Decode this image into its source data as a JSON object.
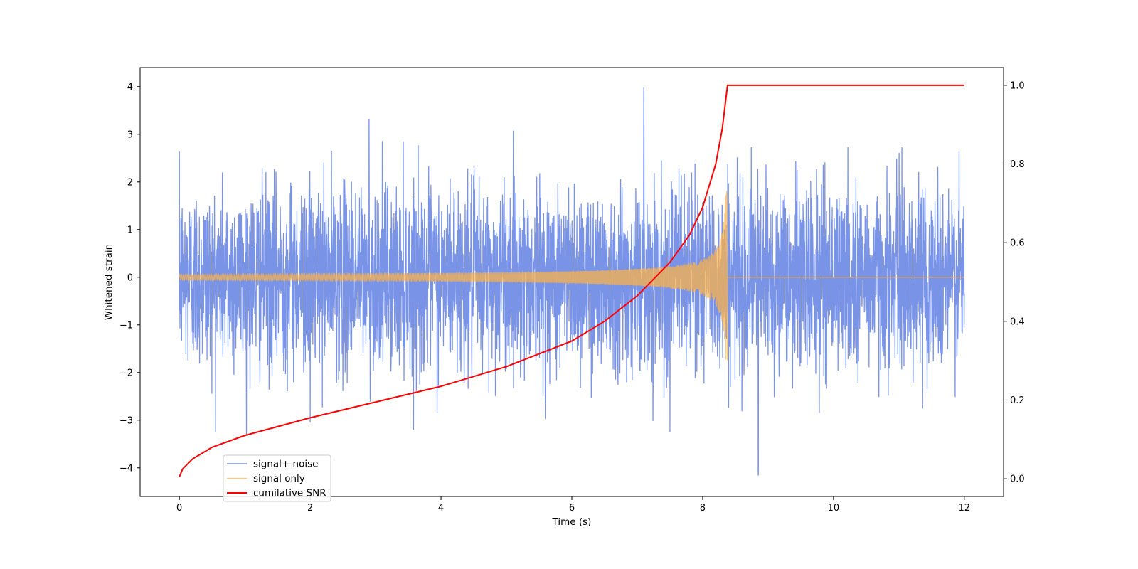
{
  "chart_data": {
    "type": "line",
    "xlabel": "Time (s)",
    "ylabel": "Whitened strain",
    "y2label": "",
    "xlim": [
      -0.6,
      12.6
    ],
    "ylim": [
      -4.6,
      4.4
    ],
    "y2lim": [
      -0.045,
      1.045
    ],
    "xticks": [
      0,
      2,
      4,
      6,
      8,
      10,
      12
    ],
    "yticks": [
      -4,
      -3,
      -2,
      -1,
      0,
      1,
      2,
      3,
      4
    ],
    "y2ticks": [
      "0.0",
      "0.2",
      "0.4",
      "0.6",
      "0.8",
      "1.0"
    ],
    "grid": false,
    "legend_position": "lower-left",
    "series": [
      {
        "name": "signal+ noise",
        "color": "#5878e0",
        "kind": "noise",
        "x_range": [
          0,
          12
        ],
        "noise_std": 0.95,
        "notable_peaks": [
          {
            "x": 7.1,
            "y": 3.98
          },
          {
            "x": 2.9,
            "y": 3.32
          },
          {
            "x": 8.85,
            "y": -4.15
          },
          {
            "x": 7.5,
            "y": -3.25
          },
          {
            "x": 2.0,
            "y": -3.05
          }
        ]
      },
      {
        "name": "signal only",
        "color": "#ffb347",
        "kind": "chirp",
        "x_range": [
          0,
          12
        ],
        "merger_time": 8.38,
        "amplitude_start": 0.06,
        "amplitude_peak": 1.8,
        "post_merger_value": 0
      },
      {
        "name": "cumilative SNR",
        "color": "#ff0000",
        "kind": "line",
        "axis": "right",
        "x": [
          0,
          0.05,
          0.2,
          0.5,
          1.0,
          2.0,
          3.0,
          4.0,
          5.0,
          6.0,
          6.5,
          7.0,
          7.5,
          7.8,
          8.0,
          8.2,
          8.3,
          8.38,
          9.0,
          10.0,
          11.0,
          12.0
        ],
        "y": [
          0.005,
          0.025,
          0.05,
          0.08,
          0.11,
          0.155,
          0.195,
          0.235,
          0.285,
          0.35,
          0.4,
          0.465,
          0.55,
          0.62,
          0.69,
          0.8,
          0.89,
          1.0,
          1.0,
          1.0,
          1.0,
          1.0
        ]
      }
    ]
  }
}
